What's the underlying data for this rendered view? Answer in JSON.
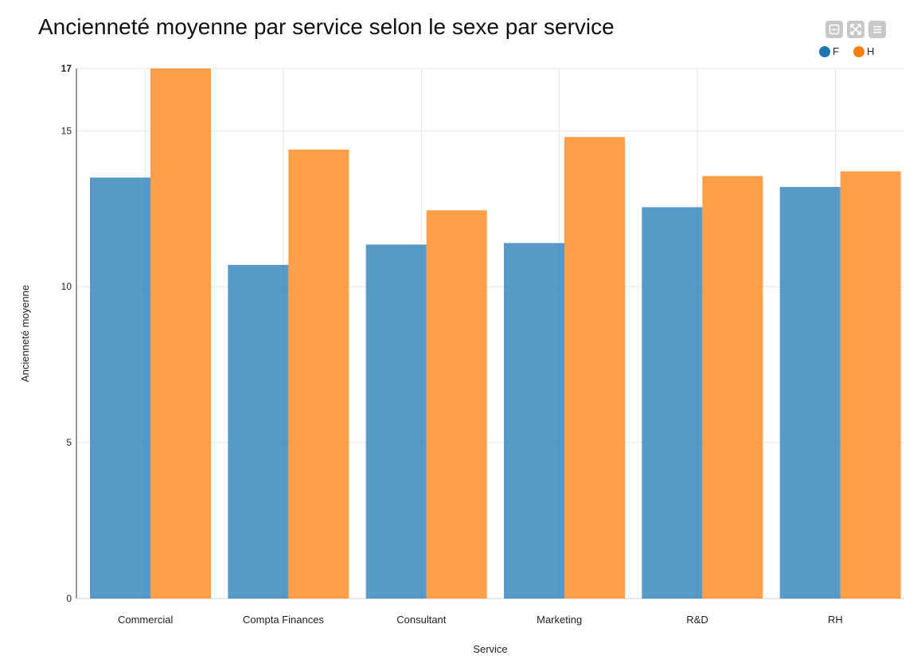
{
  "colors": {
    "F": "#1f77b4",
    "H": "#ff7f0e"
  },
  "toolbar": {
    "icons": [
      "minimize-icon",
      "fullscreen-icon",
      "menu-icon"
    ]
  },
  "legend": {
    "f_label": "F",
    "h_label": "H"
  },
  "chart_data": {
    "type": "bar",
    "title": "Ancienneté moyenne par service selon le sexe par service",
    "xlabel": "Service",
    "ylabel": "Ancienneté moyenne",
    "categories": [
      "Commercial",
      "Compta Finances",
      "Consultant",
      "Marketing",
      "R&D",
      "RH"
    ],
    "series": [
      {
        "name": "F",
        "values": [
          13.5,
          10.7,
          11.35,
          11.4,
          12.55,
          13.2
        ]
      },
      {
        "name": "H",
        "values": [
          17.0,
          14.4,
          12.45,
          14.8,
          13.55,
          13.7
        ]
      }
    ],
    "yticks": [
      0,
      5,
      10,
      15,
      17
    ],
    "ylim": [
      0,
      17
    ],
    "grid": true,
    "legend_position": "top-right"
  }
}
